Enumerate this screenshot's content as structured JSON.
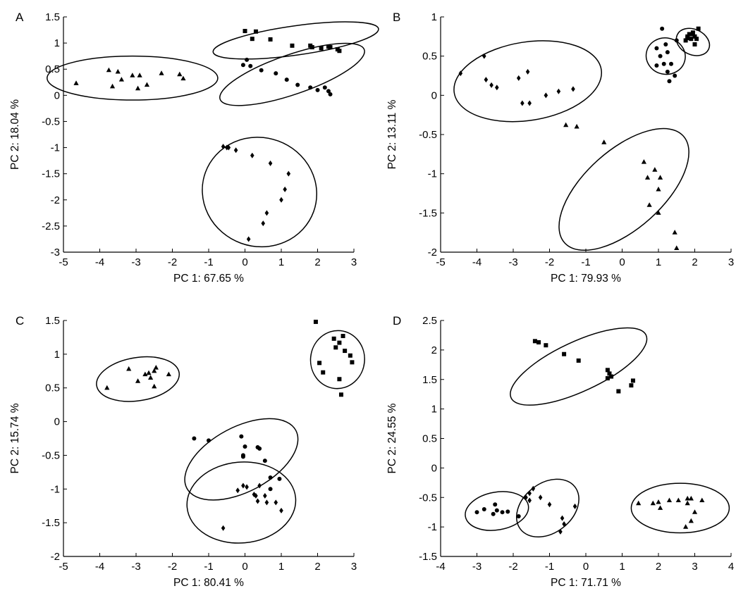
{
  "chart_data": [
    {
      "panel": "A",
      "type": "scatter",
      "xlabel": "PC 1: 67.65 %",
      "ylabel": "PC 2: 18.04 %",
      "xlim": [
        -5,
        3
      ],
      "ylim": [
        -3,
        1.5
      ],
      "xticks": [
        -5,
        -4,
        -3,
        -2,
        -1,
        0,
        1,
        2,
        3
      ],
      "yticks": [
        -3,
        -2.5,
        -2,
        -1.5,
        -1,
        -0.5,
        0,
        0.5,
        1,
        1.5
      ],
      "series": [
        {
          "marker": "triangle",
          "points": [
            [
              -4.65,
              0.23
            ],
            [
              -3.75,
              0.48
            ],
            [
              -3.5,
              0.45
            ],
            [
              -3.4,
              0.3
            ],
            [
              -3.1,
              0.38
            ],
            [
              -2.9,
              0.38
            ],
            [
              -2.7,
              0.2
            ],
            [
              -2.3,
              0.42
            ],
            [
              -1.8,
              0.4
            ],
            [
              -1.7,
              0.32
            ],
            [
              -3.65,
              0.17
            ],
            [
              -2.95,
              0.13
            ]
          ]
        },
        {
          "marker": "square",
          "points": [
            [
              0,
              1.23
            ],
            [
              0.3,
              1.22
            ],
            [
              0.2,
              1.08
            ],
            [
              0.7,
              1.07
            ],
            [
              1.3,
              0.95
            ],
            [
              1.8,
              0.95
            ],
            [
              1.85,
              0.92
            ],
            [
              2.1,
              0.9
            ],
            [
              2.3,
              0.93
            ],
            [
              2.35,
              0.92
            ],
            [
              2.55,
              0.88
            ],
            [
              2.6,
              0.85
            ]
          ]
        },
        {
          "marker": "circle",
          "points": [
            [
              -0.05,
              0.58
            ],
            [
              0.05,
              0.68
            ],
            [
              0.15,
              0.56
            ],
            [
              0.45,
              0.48
            ],
            [
              0.85,
              0.42
            ],
            [
              1.15,
              0.3
            ],
            [
              1.45,
              0.2
            ],
            [
              1.8,
              0.15
            ],
            [
              2.0,
              0.1
            ],
            [
              2.2,
              0.15
            ],
            [
              2.3,
              0.08
            ],
            [
              2.35,
              0.02
            ]
          ]
        },
        {
          "marker": "diamond",
          "points": [
            [
              -0.6,
              -0.98
            ],
            [
              -0.5,
              -1.0
            ],
            [
              -0.45,
              -1.0
            ],
            [
              -0.25,
              -1.05
            ],
            [
              0.2,
              -1.15
            ],
            [
              0.7,
              -1.3
            ],
            [
              1.2,
              -1.5
            ],
            [
              1.1,
              -1.8
            ],
            [
              1.0,
              -2.0
            ],
            [
              0.6,
              -2.25
            ],
            [
              0.5,
              -2.45
            ],
            [
              0.1,
              -2.75
            ]
          ]
        }
      ],
      "ellipses": [
        {
          "cx": -3.1,
          "cy": 0.33,
          "rx": 2.35,
          "ry": 0.42,
          "angle": 0
        },
        {
          "cx": 1.4,
          "cy": 1.05,
          "rx": 2.3,
          "ry": 0.28,
          "angle": -8
        },
        {
          "cx": 1.3,
          "cy": 0.4,
          "rx": 2.1,
          "ry": 0.38,
          "angle": -19
        },
        {
          "cx": 0.4,
          "cy": -1.85,
          "rx": 1.5,
          "ry": 1.1,
          "angle": -70
        }
      ]
    },
    {
      "panel": "B",
      "type": "scatter",
      "xlabel": "PC 1: 79.93 %",
      "ylabel": "PC 2: 13.11 %",
      "xlim": [
        -5,
        3
      ],
      "ylim": [
        -2,
        1
      ],
      "xticks": [
        -5,
        -4,
        -3,
        -2,
        -1,
        0,
        1,
        2,
        3
      ],
      "yticks": [
        -2,
        -1.5,
        -1,
        -0.5,
        0,
        0.5,
        1
      ],
      "series": [
        {
          "marker": "diamond",
          "points": [
            [
              -4.45,
              0.28
            ],
            [
              -3.8,
              0.5
            ],
            [
              -3.75,
              0.2
            ],
            [
              -3.6,
              0.13
            ],
            [
              -3.45,
              0.1
            ],
            [
              -2.85,
              0.22
            ],
            [
              -2.6,
              0.3
            ],
            [
              -2.75,
              -0.1
            ],
            [
              -2.55,
              -0.1
            ],
            [
              -2.1,
              0.0
            ],
            [
              -1.75,
              0.05
            ],
            [
              -1.35,
              0.08
            ]
          ]
        },
        {
          "marker": "circle",
          "points": [
            [
              0.95,
              0.6
            ],
            [
              1.1,
              0.85
            ],
            [
              1.2,
              0.65
            ],
            [
              1.25,
              0.55
            ],
            [
              1.05,
              0.5
            ],
            [
              1.15,
              0.4
            ],
            [
              1.35,
              0.4
            ],
            [
              1.25,
              0.3
            ],
            [
              1.45,
              0.25
            ],
            [
              1.3,
              0.18
            ],
            [
              0.95,
              0.38
            ],
            [
              1.5,
              0.7
            ]
          ]
        },
        {
          "marker": "square",
          "points": [
            [
              1.75,
              0.7
            ],
            [
              1.8,
              0.75
            ],
            [
              1.85,
              0.78
            ],
            [
              1.9,
              0.72
            ],
            [
              1.95,
              0.8
            ],
            [
              2.0,
              0.75
            ],
            [
              2.1,
              0.85
            ],
            [
              2.05,
              0.72
            ],
            [
              2.0,
              0.65
            ],
            [
              1.9,
              0.78
            ],
            [
              1.8,
              0.73
            ]
          ]
        },
        {
          "marker": "triangle",
          "points": [
            [
              -1.55,
              -0.38
            ],
            [
              -1.25,
              -0.4
            ],
            [
              -0.5,
              -0.6
            ],
            [
              0.6,
              -0.85
            ],
            [
              0.7,
              -1.05
            ],
            [
              0.75,
              -1.4
            ],
            [
              0.9,
              -0.95
            ],
            [
              1.0,
              -1.2
            ],
            [
              1.05,
              -1.05
            ],
            [
              1.0,
              -1.5
            ],
            [
              1.45,
              -1.75
            ],
            [
              1.5,
              -1.95
            ]
          ]
        }
      ],
      "ellipses": [
        {
          "cx": -2.6,
          "cy": 0.18,
          "rx": 2.05,
          "ry": 0.5,
          "angle": -9
        },
        {
          "cx": 1.2,
          "cy": 0.5,
          "rx": 0.5,
          "ry": 0.25,
          "angle": -78
        },
        {
          "cx": 1.95,
          "cy": 0.68,
          "rx": 0.35,
          "ry": 0.22,
          "angle": -65
        },
        {
          "cx": 0.05,
          "cy": -1.2,
          "rx": 2.2,
          "ry": 0.5,
          "angle": -42
        }
      ]
    },
    {
      "panel": "C",
      "type": "scatter",
      "xlabel": "PC 1: 80.41 %",
      "ylabel": "PC 2: 15.74 %",
      "xlim": [
        -5,
        3
      ],
      "ylim": [
        -2,
        1.5
      ],
      "xticks": [
        -5,
        -4,
        -3,
        -2,
        -1,
        0,
        1,
        2,
        3
      ],
      "yticks": [
        -2,
        -1.5,
        -1,
        -0.5,
        0,
        0.5,
        1,
        1.5
      ],
      "series": [
        {
          "marker": "triangle",
          "points": [
            [
              -3.8,
              0.5
            ],
            [
              -3.2,
              0.78
            ],
            [
              -2.95,
              0.6
            ],
            [
              -2.75,
              0.7
            ],
            [
              -2.65,
              0.72
            ],
            [
              -2.5,
              0.75
            ],
            [
              -2.45,
              0.8
            ],
            [
              -2.1,
              0.7
            ],
            [
              -2.5,
              0.52
            ],
            [
              -2.6,
              0.65
            ]
          ]
        },
        {
          "marker": "square",
          "points": [
            [
              1.95,
              1.48
            ],
            [
              2.05,
              0.87
            ],
            [
              2.15,
              0.73
            ],
            [
              2.45,
              1.23
            ],
            [
              2.5,
              1.1
            ],
            [
              2.6,
              1.17
            ],
            [
              2.7,
              1.27
            ],
            [
              2.75,
              1.05
            ],
            [
              2.9,
              0.98
            ],
            [
              2.95,
              0.88
            ],
            [
              2.6,
              0.63
            ],
            [
              2.65,
              0.4
            ]
          ]
        },
        {
          "marker": "circle",
          "points": [
            [
              -1.4,
              -0.25
            ],
            [
              -1.0,
              -0.28
            ],
            [
              -0.1,
              -0.22
            ],
            [
              0.0,
              -0.37
            ],
            [
              -0.05,
              -0.5
            ],
            [
              0.35,
              -0.38
            ],
            [
              0.4,
              -0.4
            ],
            [
              0.55,
              -0.58
            ],
            [
              0.7,
              -0.83
            ],
            [
              0.95,
              -0.85
            ],
            [
              0.7,
              -1.0
            ],
            [
              -0.05,
              -0.52
            ]
          ]
        },
        {
          "marker": "diamond",
          "points": [
            [
              -0.2,
              -1.02
            ],
            [
              -0.05,
              -0.95
            ],
            [
              0.05,
              -0.97
            ],
            [
              0.25,
              -1.08
            ],
            [
              0.35,
              -1.18
            ],
            [
              0.4,
              -0.95
            ],
            [
              0.55,
              -1.1
            ],
            [
              0.6,
              -1.2
            ],
            [
              0.85,
              -1.2
            ],
            [
              1.0,
              -1.32
            ],
            [
              0.3,
              -1.1
            ],
            [
              -0.6,
              -1.58
            ]
          ]
        }
      ],
      "ellipses": [
        {
          "cx": -2.95,
          "cy": 0.63,
          "rx": 1.15,
          "ry": 0.32,
          "angle": -9
        },
        {
          "cx": 2.55,
          "cy": 0.92,
          "rx": 0.8,
          "ry": 0.4,
          "angle": -84
        },
        {
          "cx": -0.1,
          "cy": -0.56,
          "rx": 1.7,
          "ry": 0.48,
          "angle": -28
        },
        {
          "cx": -0.1,
          "cy": -1.2,
          "rx": 1.5,
          "ry": 0.6,
          "angle": -5
        }
      ]
    },
    {
      "panel": "D",
      "type": "scatter",
      "xlabel": "PC 1: 71.71 %",
      "ylabel": "PC 2: 24.55 %",
      "xlim": [
        -4,
        4
      ],
      "ylim": [
        -1.5,
        2.5
      ],
      "xticks": [
        -4,
        -3,
        -2,
        -1,
        0,
        1,
        2,
        3,
        4
      ],
      "yticks": [
        -1.5,
        -1,
        -0.5,
        0,
        0.5,
        1,
        1.5,
        2,
        2.5
      ],
      "series": [
        {
          "marker": "square",
          "points": [
            [
              -1.4,
              2.15
            ],
            [
              -1.3,
              2.13
            ],
            [
              -1.1,
              2.08
            ],
            [
              -0.6,
              1.93
            ],
            [
              -0.2,
              1.82
            ],
            [
              0.6,
              1.52
            ],
            [
              0.6,
              1.66
            ],
            [
              0.65,
              1.6
            ],
            [
              0.7,
              1.55
            ],
            [
              0.9,
              1.3
            ],
            [
              1.25,
              1.4
            ],
            [
              1.3,
              1.48
            ]
          ]
        },
        {
          "marker": "circle",
          "points": [
            [
              -3.0,
              -0.75
            ],
            [
              -2.8,
              -0.7
            ],
            [
              -2.5,
              -0.62
            ],
            [
              -2.45,
              -0.72
            ],
            [
              -2.3,
              -0.75
            ],
            [
              -2.15,
              -0.74
            ],
            [
              -1.85,
              -0.82
            ],
            [
              -2.55,
              -0.78
            ]
          ]
        },
        {
          "marker": "diamond",
          "points": [
            [
              -1.65,
              -0.5
            ],
            [
              -1.55,
              -0.43
            ],
            [
              -1.45,
              -0.35
            ],
            [
              -1.55,
              -0.55
            ],
            [
              -1.25,
              -0.5
            ],
            [
              -1.0,
              -0.62
            ],
            [
              -0.65,
              -0.85
            ],
            [
              -0.6,
              -0.95
            ],
            [
              -0.7,
              -1.08
            ],
            [
              -0.3,
              -0.65
            ]
          ]
        },
        {
          "marker": "triangle",
          "points": [
            [
              1.45,
              -0.6
            ],
            [
              1.85,
              -0.6
            ],
            [
              2.0,
              -0.58
            ],
            [
              2.05,
              -0.68
            ],
            [
              2.3,
              -0.55
            ],
            [
              2.55,
              -0.55
            ],
            [
              2.8,
              -0.52
            ],
            [
              2.9,
              -0.52
            ],
            [
              2.8,
              -0.6
            ],
            [
              3.2,
              -0.55
            ],
            [
              2.75,
              -1.0
            ],
            [
              2.9,
              -0.9
            ],
            [
              3.0,
              -0.75
            ]
          ]
        }
      ],
      "ellipses": [
        {
          "cx": -0.2,
          "cy": 1.72,
          "rx": 2.05,
          "ry": 0.42,
          "angle": -25
        },
        {
          "cx": -2.45,
          "cy": -0.73,
          "rx": 0.88,
          "ry": 0.32,
          "angle": -10
        },
        {
          "cx": -1.05,
          "cy": -0.68,
          "rx": 0.95,
          "ry": 0.42,
          "angle": -38
        },
        {
          "cx": 2.6,
          "cy": -0.68,
          "rx": 1.35,
          "ry": 0.42,
          "angle": 0
        }
      ]
    }
  ]
}
